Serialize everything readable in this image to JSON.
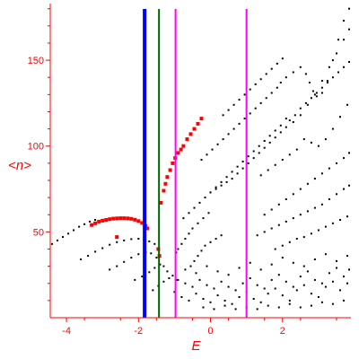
{
  "chart_data": {
    "type": "scatter",
    "title": "",
    "xlabel": "E",
    "ylabel": "<n>",
    "xlim": [
      -4.45,
      3.9
    ],
    "ylim": [
      0,
      183
    ],
    "grid": false,
    "axis_color": "#ff0000",
    "x_ticks": [
      -4,
      -2,
      0,
      2
    ],
    "x_tick_labels": [
      "-4",
      "-2",
      "0",
      "2"
    ],
    "y_ticks": [
      50,
      100,
      150
    ],
    "y_tick_labels": [
      "50",
      "100",
      "150"
    ],
    "vertical_lines": [
      {
        "x": -1.83,
        "color": "#0000ff"
      },
      {
        "x": -1.43,
        "color": "#006400"
      },
      {
        "x": -0.97,
        "color": "#ff00ff"
      },
      {
        "x": 1.0,
        "color": "#ff00ff"
      }
    ],
    "series": [
      {
        "color": "#000000",
        "points": [
          [
            -4.4,
            43
          ],
          [
            -4.25,
            45
          ],
          [
            -4.1,
            47
          ],
          [
            -3.95,
            49
          ],
          [
            -3.8,
            51
          ],
          [
            -3.65,
            53
          ],
          [
            -3.5,
            54.5
          ],
          [
            -3.35,
            56
          ],
          [
            -3.2,
            57
          ],
          [
            -3.6,
            34
          ],
          [
            -3.4,
            36
          ],
          [
            -3.2,
            38.5
          ],
          [
            -3.0,
            40.5
          ],
          [
            -2.8,
            42.5
          ],
          [
            -2.6,
            44
          ],
          [
            -2.4,
            45
          ],
          [
            -2.2,
            45.8
          ],
          [
            -2.0,
            46
          ],
          [
            -1.85,
            45.5
          ],
          [
            -1.7,
            44.5
          ],
          [
            -1.55,
            43
          ],
          [
            -2.8,
            28
          ],
          [
            -2.6,
            30
          ],
          [
            -2.4,
            32.5
          ],
          [
            -2.2,
            35
          ],
          [
            -2.0,
            37
          ],
          [
            -1.8,
            38
          ],
          [
            -1.65,
            37.5
          ],
          [
            -1.5,
            35
          ],
          [
            -2.1,
            22
          ],
          [
            -1.9,
            24
          ],
          [
            -1.7,
            26.5
          ],
          [
            -1.55,
            29
          ],
          [
            -1.4,
            31
          ],
          [
            -1.3,
            30
          ],
          [
            -1.2,
            27
          ],
          [
            -1.6,
            16
          ],
          [
            -1.45,
            18.5
          ],
          [
            -1.3,
            21
          ],
          [
            -1.15,
            23
          ],
          [
            -1.05,
            24.5
          ],
          [
            -0.95,
            22
          ],
          [
            -0.95,
            38
          ],
          [
            -0.9,
            40
          ],
          [
            -0.8,
            43
          ],
          [
            -0.7,
            46
          ],
          [
            -0.6,
            49
          ],
          [
            -0.5,
            52
          ],
          [
            -0.35,
            55
          ],
          [
            -0.2,
            58
          ],
          [
            -0.05,
            61
          ],
          [
            -0.55,
            30
          ],
          [
            -0.45,
            33
          ],
          [
            -0.35,
            36
          ],
          [
            -0.25,
            39
          ],
          [
            -0.15,
            42
          ],
          [
            0.0,
            44
          ],
          [
            0.15,
            46
          ],
          [
            0.3,
            48
          ],
          [
            -0.75,
            58
          ],
          [
            -0.6,
            61
          ],
          [
            -0.45,
            64
          ],
          [
            -0.3,
            67
          ],
          [
            -0.15,
            70
          ],
          [
            0.0,
            73
          ],
          [
            0.15,
            76
          ],
          [
            0.3,
            79
          ],
          [
            0.45,
            82
          ],
          [
            0.6,
            85
          ],
          [
            0.75,
            88
          ],
          [
            0.9,
            91
          ],
          [
            1.05,
            94
          ],
          [
            1.2,
            97
          ],
          [
            1.35,
            100
          ],
          [
            1.5,
            103
          ],
          [
            1.65,
            106
          ],
          [
            1.8,
            109
          ],
          [
            1.95,
            112
          ],
          [
            2.1,
            116
          ],
          [
            2.2,
            115
          ],
          [
            2.35,
            118
          ],
          [
            2.5,
            122
          ],
          [
            2.65,
            125
          ],
          [
            2.8,
            128
          ],
          [
            2.95,
            131
          ],
          [
            3.1,
            134
          ],
          [
            3.25,
            137
          ],
          [
            3.4,
            140
          ],
          [
            3.55,
            143
          ],
          [
            3.7,
            146
          ],
          [
            3.85,
            149
          ],
          [
            -0.25,
            92
          ],
          [
            -0.1,
            95
          ],
          [
            0.05,
            98
          ],
          [
            0.2,
            101
          ],
          [
            0.35,
            104
          ],
          [
            0.5,
            107
          ],
          [
            0.65,
            110
          ],
          [
            0.8,
            113
          ],
          [
            0.95,
            116
          ],
          [
            1.1,
            119
          ],
          [
            1.25,
            122
          ],
          [
            1.4,
            125
          ],
          [
            1.55,
            128
          ],
          [
            1.7,
            131
          ],
          [
            1.85,
            134
          ],
          [
            1.95,
            137
          ],
          [
            2.1,
            140
          ],
          [
            2.3,
            143
          ],
          [
            2.5,
            146
          ],
          [
            2.65,
            142
          ],
          [
            2.75,
            137
          ],
          [
            2.85,
            132
          ],
          [
            2.95,
            129
          ],
          [
            3.1,
            131
          ],
          [
            3.25,
            138
          ],
          [
            3.4,
            150
          ],
          [
            3.55,
            162
          ],
          [
            3.7,
            173
          ],
          [
            3.85,
            180
          ],
          [
            0.35,
            118
          ],
          [
            0.5,
            121
          ],
          [
            0.65,
            124
          ],
          [
            0.8,
            127
          ],
          [
            0.95,
            130
          ],
          [
            1.1,
            133
          ],
          [
            1.25,
            136
          ],
          [
            1.4,
            139
          ],
          [
            1.55,
            142
          ],
          [
            1.7,
            145
          ],
          [
            1.85,
            148
          ],
          [
            2.0,
            151
          ],
          [
            0.0,
            73
          ],
          [
            0.15,
            75
          ],
          [
            0.3,
            77
          ],
          [
            0.45,
            79
          ],
          [
            0.6,
            81
          ],
          [
            0.75,
            84
          ],
          [
            0.9,
            87
          ],
          [
            1.05,
            90
          ],
          [
            1.2,
            93
          ],
          [
            1.35,
            96
          ],
          [
            1.5,
            99
          ],
          [
            1.65,
            102
          ],
          [
            1.8,
            105
          ],
          [
            1.95,
            108
          ],
          [
            2.1,
            111
          ],
          [
            2.3,
            114
          ],
          [
            2.5,
            118
          ],
          [
            2.7,
            124
          ],
          [
            2.9,
            130
          ],
          [
            3.1,
            138
          ],
          [
            3.3,
            146
          ],
          [
            3.5,
            154
          ],
          [
            3.7,
            162
          ],
          [
            3.85,
            168
          ],
          [
            1.4,
            83
          ],
          [
            1.6,
            86
          ],
          [
            1.8,
            89
          ],
          [
            2.0,
            92
          ],
          [
            2.2,
            95
          ],
          [
            2.4,
            98
          ],
          [
            2.6,
            104
          ],
          [
            2.8,
            102
          ],
          [
            3.0,
            100
          ],
          [
            3.2,
            104
          ],
          [
            3.4,
            110
          ],
          [
            3.6,
            117
          ],
          [
            3.8,
            124
          ],
          [
            1.5,
            60
          ],
          [
            1.7,
            63
          ],
          [
            1.9,
            66
          ],
          [
            2.1,
            69
          ],
          [
            2.3,
            72
          ],
          [
            2.5,
            75
          ],
          [
            2.7,
            78
          ],
          [
            2.9,
            81
          ],
          [
            3.1,
            84
          ],
          [
            3.3,
            87
          ],
          [
            3.5,
            90
          ],
          [
            3.7,
            93
          ],
          [
            3.85,
            96
          ],
          [
            1.3,
            48
          ],
          [
            1.5,
            50
          ],
          [
            1.7,
            52
          ],
          [
            1.9,
            54
          ],
          [
            2.1,
            56
          ],
          [
            2.3,
            58
          ],
          [
            2.5,
            60
          ],
          [
            2.7,
            62
          ],
          [
            2.9,
            64
          ],
          [
            3.1,
            66
          ],
          [
            3.3,
            69
          ],
          [
            3.5,
            72
          ],
          [
            3.7,
            75
          ],
          [
            3.85,
            77
          ],
          [
            1.8,
            40
          ],
          [
            2.0,
            42
          ],
          [
            2.2,
            44
          ],
          [
            2.4,
            46
          ],
          [
            2.6,
            47
          ],
          [
            2.8,
            49
          ],
          [
            3.0,
            51
          ],
          [
            3.2,
            53
          ],
          [
            3.4,
            55
          ],
          [
            3.6,
            57
          ],
          [
            3.8,
            59
          ],
          [
            -1.0,
            15
          ],
          [
            -0.8,
            12
          ],
          [
            -0.6,
            10
          ],
          [
            -0.4,
            14
          ],
          [
            -0.2,
            11
          ],
          [
            0.0,
            9
          ],
          [
            0.2,
            13
          ],
          [
            0.4,
            10
          ],
          [
            0.6,
            8
          ],
          [
            0.8,
            12
          ],
          [
            1.0,
            15
          ],
          [
            1.2,
            11
          ],
          [
            1.4,
            9
          ],
          [
            1.6,
            14
          ],
          [
            1.8,
            17
          ],
          [
            2.0,
            13
          ],
          [
            2.2,
            10
          ],
          [
            2.4,
            16
          ],
          [
            2.6,
            19
          ],
          [
            2.8,
            14
          ],
          [
            3.0,
            12
          ],
          [
            3.2,
            18
          ],
          [
            3.4,
            21
          ],
          [
            3.6,
            16
          ],
          [
            3.8,
            20
          ],
          [
            -0.9,
            22
          ],
          [
            -0.7,
            20
          ],
          [
            -0.5,
            18
          ],
          [
            -0.3,
            22
          ],
          [
            -0.1,
            19
          ],
          [
            0.1,
            17
          ],
          [
            0.3,
            21
          ],
          [
            0.5,
            18
          ],
          [
            0.7,
            16
          ],
          [
            0.9,
            20
          ],
          [
            1.1,
            23
          ],
          [
            1.3,
            19
          ],
          [
            1.5,
            17
          ],
          [
            1.7,
            22
          ],
          [
            1.9,
            25
          ],
          [
            2.1,
            21
          ],
          [
            2.3,
            18
          ],
          [
            2.5,
            24
          ],
          [
            2.7,
            27
          ],
          [
            2.9,
            22
          ],
          [
            3.1,
            20
          ],
          [
            3.3,
            26
          ],
          [
            3.5,
            29
          ],
          [
            3.7,
            24
          ],
          [
            3.85,
            28
          ],
          [
            -0.7,
            28
          ],
          [
            -0.4,
            26
          ],
          [
            -0.1,
            30
          ],
          [
            0.2,
            27
          ],
          [
            0.5,
            25
          ],
          [
            0.8,
            29
          ],
          [
            1.1,
            32
          ],
          [
            1.4,
            28
          ],
          [
            1.7,
            31
          ],
          [
            2.0,
            35
          ],
          [
            2.3,
            32
          ],
          [
            2.6,
            30
          ],
          [
            2.9,
            34
          ],
          [
            3.2,
            37
          ],
          [
            3.5,
            33
          ],
          [
            3.8,
            36
          ],
          [
            -0.2,
            6
          ],
          [
            0.1,
            5
          ],
          [
            0.4,
            7
          ],
          [
            0.7,
            5
          ],
          [
            1.0,
            6
          ],
          [
            1.3,
            5
          ],
          [
            1.6,
            7
          ],
          [
            1.9,
            6
          ],
          [
            2.2,
            8
          ],
          [
            2.5,
            6
          ],
          [
            2.8,
            7
          ],
          [
            3.1,
            9
          ],
          [
            3.4,
            8
          ],
          [
            3.7,
            10
          ]
        ]
      },
      {
        "color": "#ff0000",
        "points": [
          [
            -3.3,
            54
          ],
          [
            -3.2,
            55
          ],
          [
            -3.1,
            56
          ],
          [
            -3.0,
            56.5
          ],
          [
            -2.9,
            57
          ],
          [
            -2.8,
            57.4
          ],
          [
            -2.7,
            57.7
          ],
          [
            -2.6,
            57.9
          ],
          [
            -2.5,
            58
          ],
          [
            -2.4,
            58
          ],
          [
            -2.3,
            57.9
          ],
          [
            -2.2,
            57.6
          ],
          [
            -2.1,
            57.1
          ],
          [
            -2.0,
            56.3
          ],
          [
            -1.9,
            55.2
          ],
          [
            -1.8,
            53.5
          ],
          [
            -1.75,
            52
          ],
          [
            -2.6,
            47
          ],
          [
            -1.45,
            40
          ],
          [
            -1.42,
            36
          ],
          [
            -1.38,
            67
          ],
          [
            -1.3,
            74
          ],
          [
            -1.25,
            78
          ],
          [
            -1.2,
            82
          ],
          [
            -1.12,
            86
          ],
          [
            -1.05,
            90
          ],
          [
            -0.98,
            93
          ],
          [
            -0.9,
            96
          ],
          [
            -0.82,
            98
          ],
          [
            -0.75,
            100
          ],
          [
            -0.65,
            104
          ],
          [
            -0.55,
            107
          ],
          [
            -0.45,
            110
          ],
          [
            -0.35,
            113
          ],
          [
            -0.25,
            116
          ]
        ]
      }
    ]
  }
}
